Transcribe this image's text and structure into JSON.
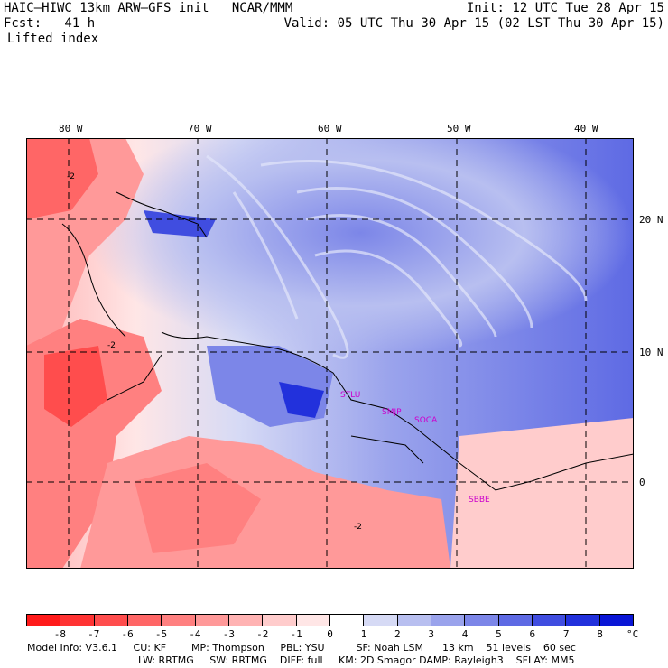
{
  "header": {
    "line1_left": "HAIC–HIWC 13km ARW–GFS init   NCAR/MMM",
    "line1_right": "Init: 12 UTC Tue 28 Apr 15",
    "line2_left": "Fcst:   41 h",
    "line2_right": "Valid: 05 UTC Thu 30 Apr 15 (02 LST Thu 30 Apr 15)",
    "line3_left": "Lifted index"
  },
  "lon_labels": [
    "80 W",
    "70 W",
    "60 W",
    "50 W",
    "40 W"
  ],
  "lat_labels": [
    "20 N",
    "10 N",
    "0"
  ],
  "map_labels": [
    "STLU",
    "SMJP",
    "SOCA",
    "SBBE"
  ],
  "contour_labels": [
    "-2",
    "-2",
    "-2"
  ],
  "colorbar": {
    "labels": [
      "-8",
      "-7",
      "-6",
      "-5",
      "-4",
      "-3",
      "-2",
      "-1",
      "0",
      "1",
      "2",
      "3",
      "4",
      "5",
      "6",
      "7",
      "8"
    ],
    "unit": "°C",
    "colors": [
      "#ff1a1a",
      "#ff3333",
      "#ff4d4d",
      "#ff6666",
      "#ff8080",
      "#ff9999",
      "#ffb3b3",
      "#ffcccc",
      "#ffe6e6",
      "#ffffff",
      "#d6daf5",
      "#b8bff0",
      "#9aa3ec",
      "#7c86e8",
      "#5e6ae4",
      "#404de0",
      "#2231dc",
      "#0a16d6"
    ]
  },
  "info": {
    "line1": "Model Info: V3.6.1     CU: KF        MP: Thompson     PBL: YSU          SF: Noah LSM      13 km    51 levels    60 sec",
    "line2": "LW: RRTMG     SW: RRTMG    DIFF: full     KM: 2D Smagor DAMP: Rayleigh3    SFLAY: MM5"
  }
}
